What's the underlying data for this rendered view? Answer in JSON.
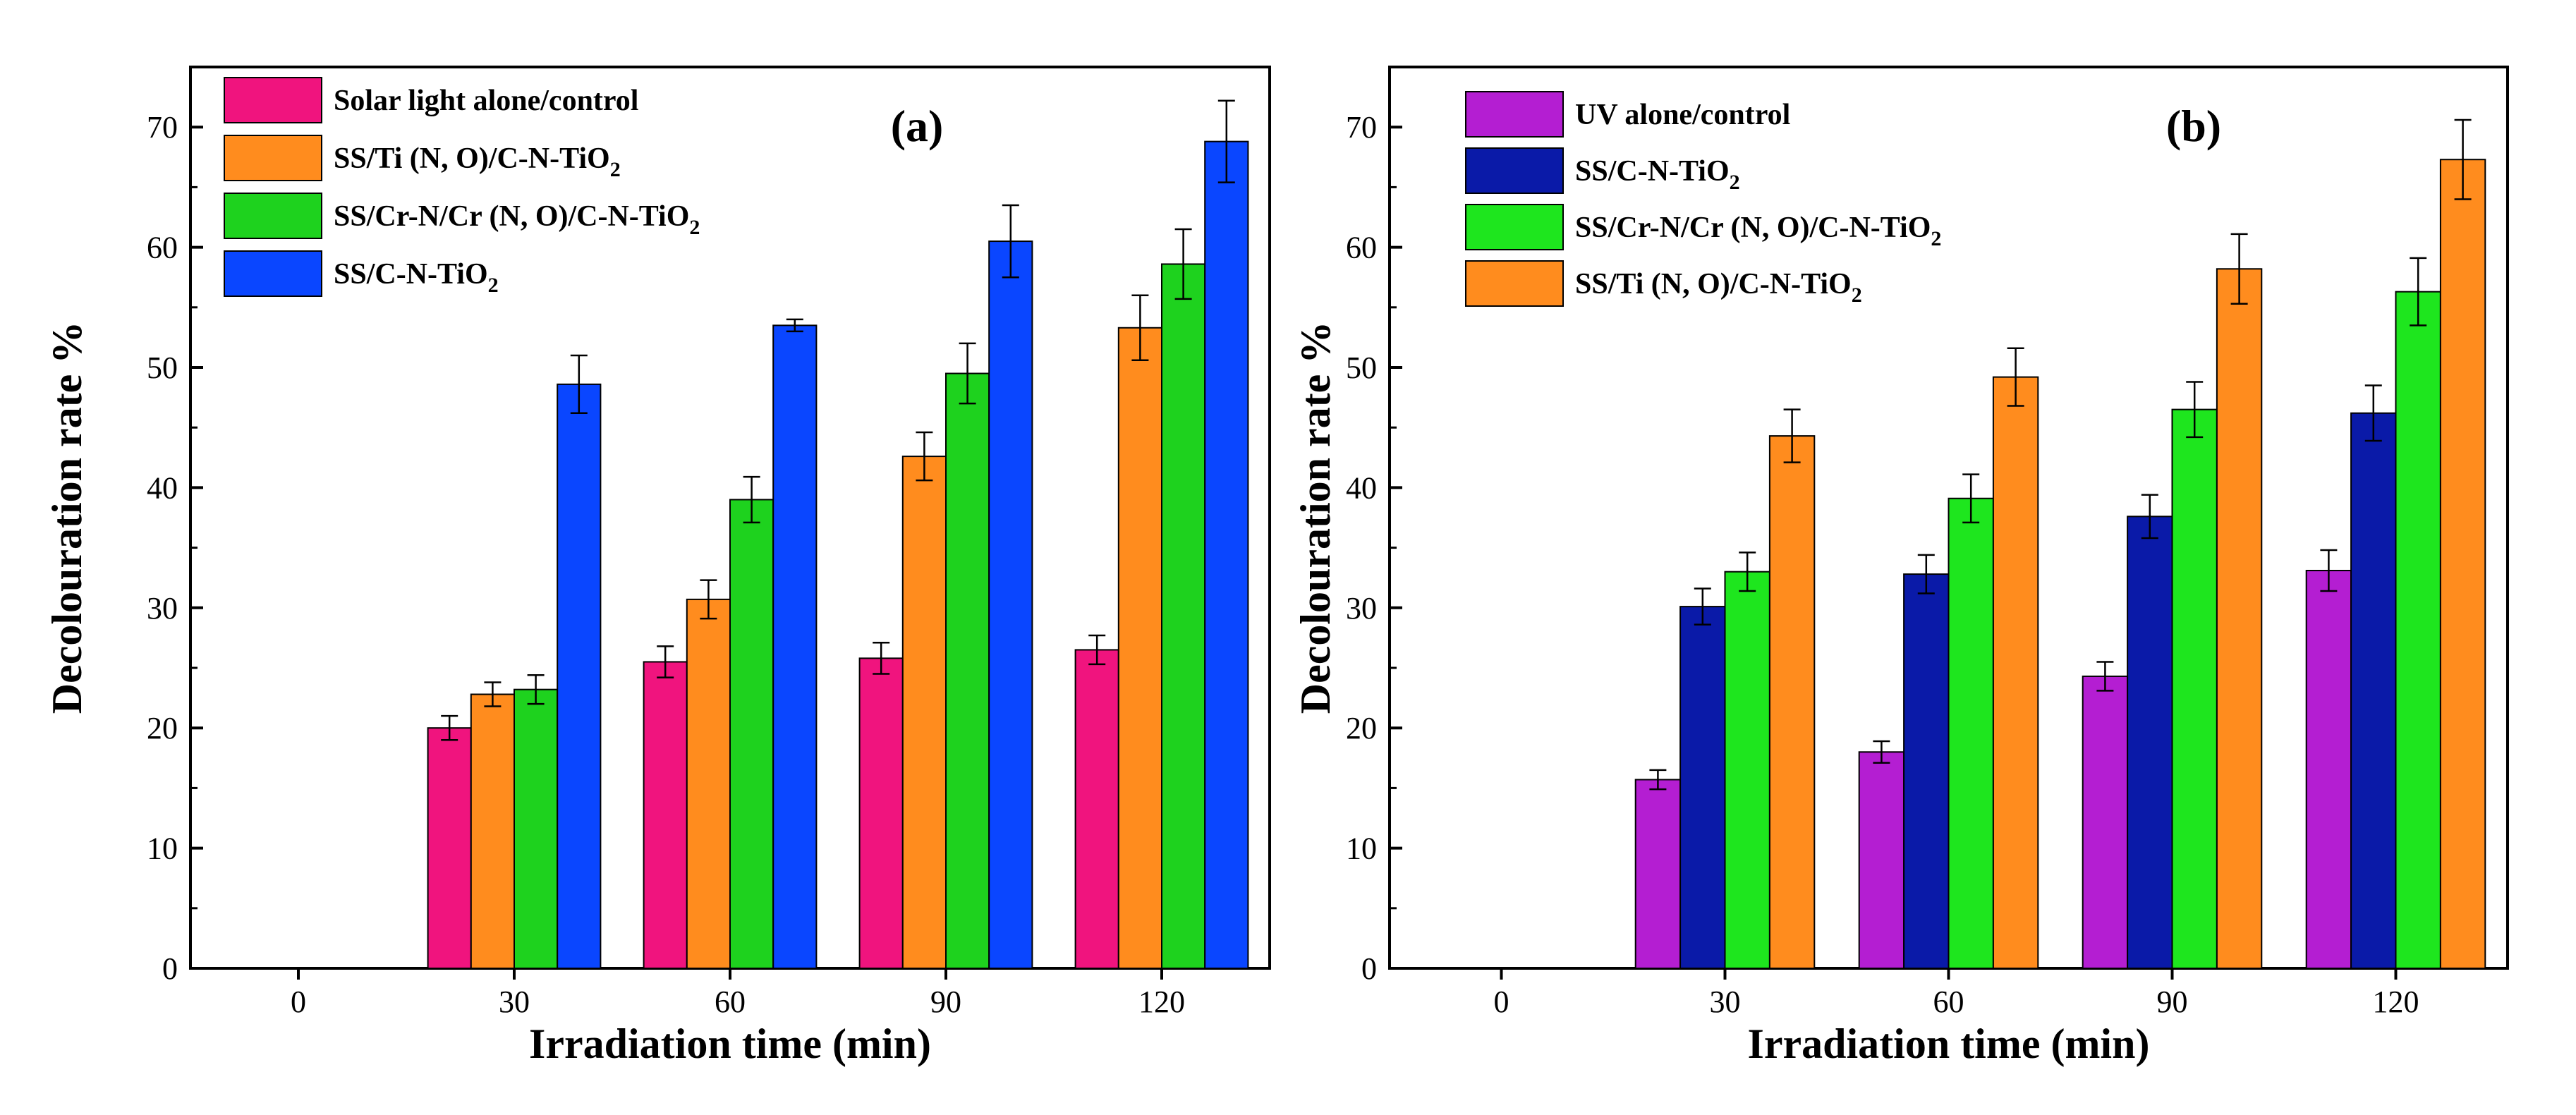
{
  "chart_data": [
    {
      "type": "bar",
      "panel_label": "(a)",
      "xlabel": "Irradiation time (min)",
      "ylabel": "Decolouration rate %",
      "categories": [
        "0",
        "30",
        "60",
        "90",
        "120"
      ],
      "ylim": [
        0,
        75
      ],
      "yticks": [
        "0",
        "10",
        "20",
        "30",
        "40",
        "50",
        "60",
        "70"
      ],
      "legend_position": "top-left",
      "series": [
        {
          "name": "Solar light alone/control",
          "color": "#f0147e",
          "values": [
            0,
            20.0,
            25.5,
            25.8,
            26.5
          ],
          "errors": [
            0,
            1.0,
            1.3,
            1.3,
            1.2
          ]
        },
        {
          "name": "SS/Ti (N, O)/C-N-TiO₂",
          "color": "#ff8c1e",
          "values": [
            0,
            22.8,
            30.7,
            42.6,
            53.3
          ],
          "errors": [
            0,
            1.0,
            1.6,
            2.0,
            2.7
          ]
        },
        {
          "name": "SS/Cr-N/Cr (N, O)/C-N-TiO₂",
          "color": "#1ed21e",
          "values": [
            0,
            23.2,
            39.0,
            49.5,
            58.6
          ],
          "errors": [
            0,
            1.2,
            1.9,
            2.5,
            2.9
          ]
        },
        {
          "name": "SS/C-N-TiO₂",
          "color": "#0a46ff",
          "values": [
            0,
            48.6,
            53.5,
            60.5,
            68.8
          ],
          "errors": [
            0,
            2.4,
            0.5,
            3.0,
            3.4
          ]
        }
      ]
    },
    {
      "type": "bar",
      "panel_label": "(b)",
      "xlabel": "Irradiation time (min)",
      "ylabel": "Decolouration rate %",
      "categories": [
        "0",
        "30",
        "60",
        "90",
        "120"
      ],
      "ylim": [
        0,
        75
      ],
      "yticks": [
        "0",
        "10",
        "20",
        "30",
        "40",
        "50",
        "60",
        "70"
      ],
      "legend_position": "top-left",
      "series": [
        {
          "name": "UV alone/control",
          "color": "#b41ed2",
          "values": [
            0,
            15.7,
            18.0,
            24.3,
            33.1
          ],
          "errors": [
            0,
            0.8,
            0.9,
            1.2,
            1.7
          ]
        },
        {
          "name": "SS/C-N-TiO₂",
          "color": "#0a1aa8",
          "values": [
            0,
            30.1,
            32.8,
            37.6,
            46.2
          ],
          "errors": [
            0,
            1.5,
            1.6,
            1.8,
            2.3
          ]
        },
        {
          "name": "SS/Cr-N/Cr (N, O)/C-N-TiO₂",
          "color": "#1ee61e",
          "values": [
            0,
            33.0,
            39.1,
            46.5,
            56.3
          ],
          "errors": [
            0,
            1.6,
            2.0,
            2.3,
            2.8
          ]
        },
        {
          "name": "SS/Ti (N, O)/C-N-TiO₂",
          "color": "#ff8c1e",
          "values": [
            0,
            44.3,
            49.2,
            58.2,
            67.3
          ],
          "errors": [
            0,
            2.2,
            2.4,
            2.9,
            3.3
          ]
        }
      ]
    }
  ]
}
